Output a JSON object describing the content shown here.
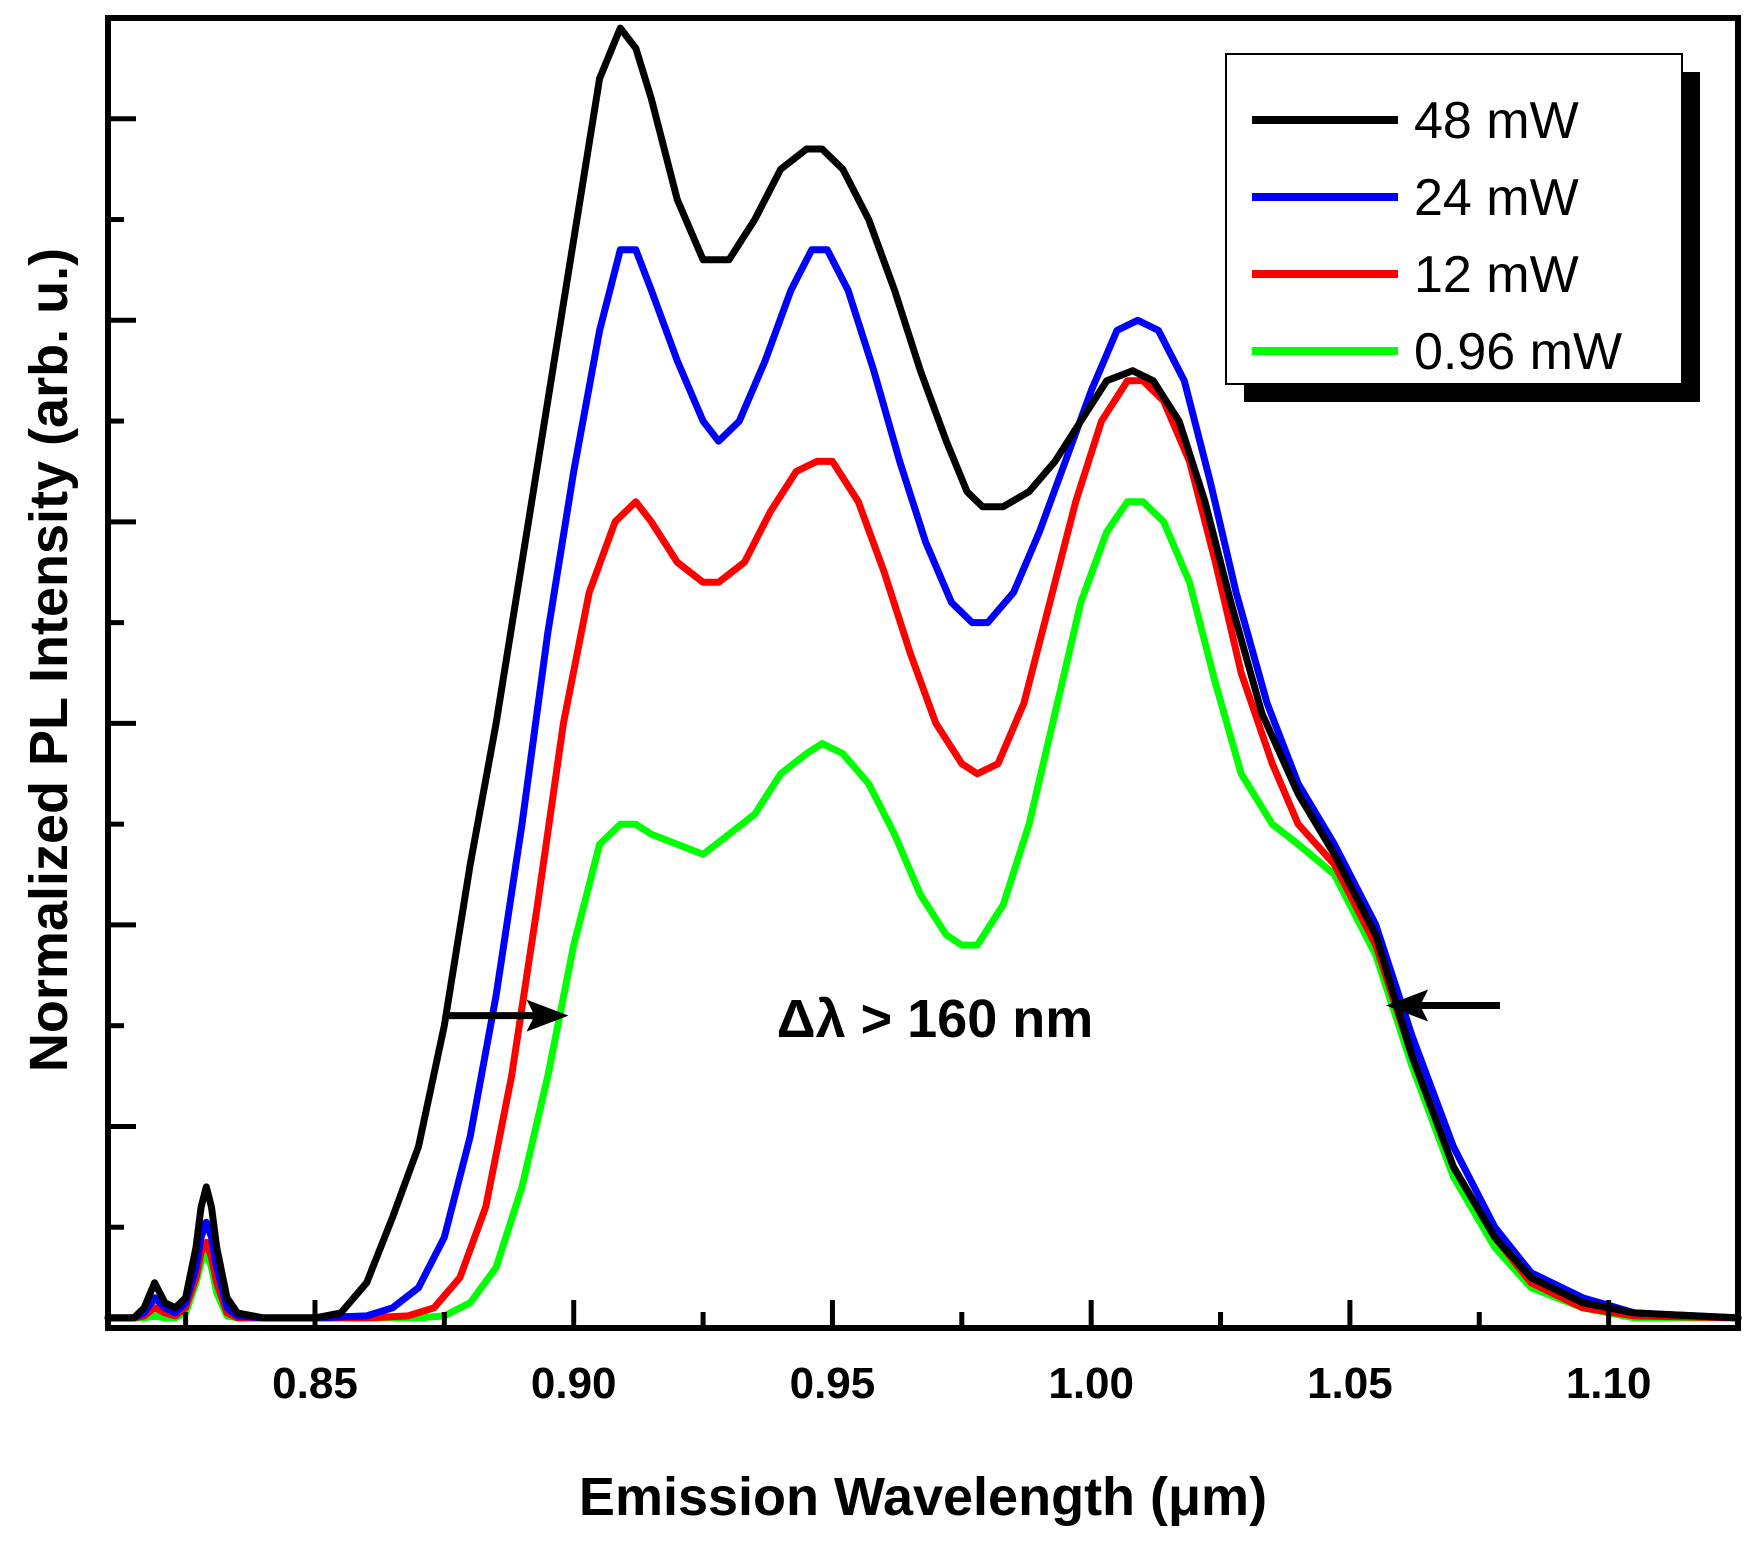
{
  "chart_data": {
    "type": "line",
    "title": "",
    "xlabel": "Emission Wavelength (μm)",
    "ylabel": "Normalized PL Intensity (arb. u.)",
    "xlim": [
      0.81,
      1.125
    ],
    "ylim": [
      0,
      1.3
    ],
    "xticks": [
      0.85,
      0.9,
      0.95,
      1.0,
      1.05,
      1.1
    ],
    "xtick_labels": [
      "0.85",
      "0.90",
      "0.95",
      "1.00",
      "1.05",
      "1.10"
    ],
    "grid": false,
    "legend_position": "top-right",
    "annotation": "Δλ > 160 nm",
    "arrows": [
      {
        "from": [
          0.875,
          0.31
        ],
        "to": [
          0.899,
          0.31
        ]
      },
      {
        "from": [
          1.079,
          0.32
        ],
        "to": [
          1.057,
          0.32
        ]
      }
    ],
    "series": [
      {
        "name": "48 mW",
        "color": "#000000",
        "points": [
          [
            0.81,
            0.01
          ],
          [
            0.815,
            0.01
          ],
          [
            0.817,
            0.02
          ],
          [
            0.819,
            0.045
          ],
          [
            0.821,
            0.025
          ],
          [
            0.823,
            0.02
          ],
          [
            0.825,
            0.03
          ],
          [
            0.827,
            0.08
          ],
          [
            0.828,
            0.12
          ],
          [
            0.829,
            0.14
          ],
          [
            0.83,
            0.12
          ],
          [
            0.831,
            0.08
          ],
          [
            0.833,
            0.03
          ],
          [
            0.835,
            0.015
          ],
          [
            0.84,
            0.01
          ],
          [
            0.85,
            0.01
          ],
          [
            0.855,
            0.015
          ],
          [
            0.86,
            0.045
          ],
          [
            0.865,
            0.11
          ],
          [
            0.87,
            0.18
          ],
          [
            0.875,
            0.3
          ],
          [
            0.88,
            0.46
          ],
          [
            0.885,
            0.6
          ],
          [
            0.89,
            0.76
          ],
          [
            0.895,
            0.92
          ],
          [
            0.9,
            1.08
          ],
          [
            0.905,
            1.24
          ],
          [
            0.909,
            1.29
          ],
          [
            0.912,
            1.27
          ],
          [
            0.915,
            1.22
          ],
          [
            0.92,
            1.12
          ],
          [
            0.925,
            1.06
          ],
          [
            0.93,
            1.06
          ],
          [
            0.935,
            1.1
          ],
          [
            0.94,
            1.15
          ],
          [
            0.945,
            1.17
          ],
          [
            0.948,
            1.17
          ],
          [
            0.952,
            1.15
          ],
          [
            0.957,
            1.1
          ],
          [
            0.962,
            1.03
          ],
          [
            0.967,
            0.95
          ],
          [
            0.972,
            0.88
          ],
          [
            0.976,
            0.83
          ],
          [
            0.979,
            0.815
          ],
          [
            0.983,
            0.815
          ],
          [
            0.988,
            0.83
          ],
          [
            0.993,
            0.86
          ],
          [
            0.998,
            0.9
          ],
          [
            1.003,
            0.94
          ],
          [
            1.008,
            0.95
          ],
          [
            1.012,
            0.94
          ],
          [
            1.017,
            0.9
          ],
          [
            1.022,
            0.82
          ],
          [
            1.027,
            0.72
          ],
          [
            1.033,
            0.61
          ],
          [
            1.04,
            0.53
          ],
          [
            1.047,
            0.47
          ],
          [
            1.055,
            0.39
          ],
          [
            1.062,
            0.27
          ],
          [
            1.07,
            0.16
          ],
          [
            1.078,
            0.09
          ],
          [
            1.085,
            0.05
          ],
          [
            1.095,
            0.025
          ],
          [
            1.105,
            0.015
          ],
          [
            1.125,
            0.01
          ]
        ]
      },
      {
        "name": "24 mW",
        "color": "#0000ff",
        "points": [
          [
            0.81,
            0.01
          ],
          [
            0.815,
            0.01
          ],
          [
            0.817,
            0.015
          ],
          [
            0.819,
            0.03
          ],
          [
            0.821,
            0.02
          ],
          [
            0.823,
            0.015
          ],
          [
            0.825,
            0.025
          ],
          [
            0.827,
            0.06
          ],
          [
            0.828,
            0.09
          ],
          [
            0.829,
            0.105
          ],
          [
            0.83,
            0.09
          ],
          [
            0.831,
            0.06
          ],
          [
            0.833,
            0.02
          ],
          [
            0.835,
            0.012
          ],
          [
            0.84,
            0.01
          ],
          [
            0.85,
            0.01
          ],
          [
            0.86,
            0.012
          ],
          [
            0.865,
            0.02
          ],
          [
            0.87,
            0.04
          ],
          [
            0.875,
            0.09
          ],
          [
            0.88,
            0.19
          ],
          [
            0.885,
            0.33
          ],
          [
            0.89,
            0.5
          ],
          [
            0.895,
            0.69
          ],
          [
            0.9,
            0.85
          ],
          [
            0.905,
            0.99
          ],
          [
            0.909,
            1.07
          ],
          [
            0.912,
            1.07
          ],
          [
            0.915,
            1.03
          ],
          [
            0.92,
            0.96
          ],
          [
            0.925,
            0.9
          ],
          [
            0.928,
            0.88
          ],
          [
            0.932,
            0.9
          ],
          [
            0.937,
            0.96
          ],
          [
            0.942,
            1.03
          ],
          [
            0.946,
            1.07
          ],
          [
            0.949,
            1.07
          ],
          [
            0.953,
            1.03
          ],
          [
            0.958,
            0.95
          ],
          [
            0.963,
            0.86
          ],
          [
            0.968,
            0.78
          ],
          [
            0.973,
            0.72
          ],
          [
            0.977,
            0.7
          ],
          [
            0.98,
            0.7
          ],
          [
            0.985,
            0.73
          ],
          [
            0.99,
            0.79
          ],
          [
            0.995,
            0.86
          ],
          [
            1.0,
            0.93
          ],
          [
            1.005,
            0.99
          ],
          [
            1.009,
            1.0
          ],
          [
            1.013,
            0.99
          ],
          [
            1.018,
            0.94
          ],
          [
            1.023,
            0.84
          ],
          [
            1.028,
            0.73
          ],
          [
            1.034,
            0.62
          ],
          [
            1.04,
            0.54
          ],
          [
            1.047,
            0.48
          ],
          [
            1.055,
            0.4
          ],
          [
            1.062,
            0.29
          ],
          [
            1.07,
            0.18
          ],
          [
            1.078,
            0.1
          ],
          [
            1.085,
            0.055
          ],
          [
            1.095,
            0.03
          ],
          [
            1.105,
            0.015
          ],
          [
            1.125,
            0.01
          ]
        ]
      },
      {
        "name": "12 mW",
        "color": "#ff0000",
        "points": [
          [
            0.81,
            0.01
          ],
          [
            0.815,
            0.01
          ],
          [
            0.817,
            0.012
          ],
          [
            0.819,
            0.02
          ],
          [
            0.821,
            0.015
          ],
          [
            0.823,
            0.012
          ],
          [
            0.825,
            0.02
          ],
          [
            0.827,
            0.05
          ],
          [
            0.828,
            0.075
          ],
          [
            0.829,
            0.085
          ],
          [
            0.83,
            0.07
          ],
          [
            0.831,
            0.045
          ],
          [
            0.833,
            0.015
          ],
          [
            0.835,
            0.01
          ],
          [
            0.84,
            0.01
          ],
          [
            0.85,
            0.01
          ],
          [
            0.86,
            0.01
          ],
          [
            0.868,
            0.012
          ],
          [
            0.873,
            0.02
          ],
          [
            0.878,
            0.05
          ],
          [
            0.883,
            0.12
          ],
          [
            0.888,
            0.25
          ],
          [
            0.893,
            0.42
          ],
          [
            0.898,
            0.6
          ],
          [
            0.903,
            0.73
          ],
          [
            0.908,
            0.8
          ],
          [
            0.912,
            0.82
          ],
          [
            0.915,
            0.8
          ],
          [
            0.92,
            0.76
          ],
          [
            0.925,
            0.74
          ],
          [
            0.928,
            0.74
          ],
          [
            0.933,
            0.76
          ],
          [
            0.938,
            0.81
          ],
          [
            0.943,
            0.85
          ],
          [
            0.947,
            0.86
          ],
          [
            0.95,
            0.86
          ],
          [
            0.955,
            0.82
          ],
          [
            0.96,
            0.75
          ],
          [
            0.965,
            0.67
          ],
          [
            0.97,
            0.6
          ],
          [
            0.975,
            0.56
          ],
          [
            0.978,
            0.55
          ],
          [
            0.982,
            0.56
          ],
          [
            0.987,
            0.62
          ],
          [
            0.992,
            0.72
          ],
          [
            0.997,
            0.82
          ],
          [
            1.002,
            0.9
          ],
          [
            1.007,
            0.94
          ],
          [
            1.01,
            0.94
          ],
          [
            1.014,
            0.92
          ],
          [
            1.019,
            0.86
          ],
          [
            1.024,
            0.76
          ],
          [
            1.029,
            0.65
          ],
          [
            1.035,
            0.56
          ],
          [
            1.04,
            0.5
          ],
          [
            1.047,
            0.46
          ],
          [
            1.055,
            0.38
          ],
          [
            1.062,
            0.27
          ],
          [
            1.07,
            0.16
          ],
          [
            1.078,
            0.09
          ],
          [
            1.085,
            0.045
          ],
          [
            1.095,
            0.02
          ],
          [
            1.105,
            0.012
          ],
          [
            1.125,
            0.01
          ]
        ]
      },
      {
        "name": "0.96 mW",
        "color": "#00ff00",
        "points": [
          [
            0.81,
            0.01
          ],
          [
            0.815,
            0.01
          ],
          [
            0.817,
            0.01
          ],
          [
            0.819,
            0.012
          ],
          [
            0.821,
            0.01
          ],
          [
            0.823,
            0.01
          ],
          [
            0.825,
            0.015
          ],
          [
            0.827,
            0.045
          ],
          [
            0.828,
            0.065
          ],
          [
            0.829,
            0.075
          ],
          [
            0.83,
            0.06
          ],
          [
            0.831,
            0.035
          ],
          [
            0.833,
            0.012
          ],
          [
            0.835,
            0.01
          ],
          [
            0.84,
            0.01
          ],
          [
            0.85,
            0.01
          ],
          [
            0.86,
            0.01
          ],
          [
            0.87,
            0.01
          ],
          [
            0.875,
            0.012
          ],
          [
            0.88,
            0.025
          ],
          [
            0.885,
            0.06
          ],
          [
            0.89,
            0.14
          ],
          [
            0.895,
            0.25
          ],
          [
            0.9,
            0.38
          ],
          [
            0.905,
            0.48
          ],
          [
            0.909,
            0.5
          ],
          [
            0.912,
            0.5
          ],
          [
            0.915,
            0.49
          ],
          [
            0.92,
            0.48
          ],
          [
            0.925,
            0.47
          ],
          [
            0.93,
            0.49
          ],
          [
            0.935,
            0.51
          ],
          [
            0.94,
            0.55
          ],
          [
            0.945,
            0.57
          ],
          [
            0.948,
            0.58
          ],
          [
            0.952,
            0.57
          ],
          [
            0.957,
            0.54
          ],
          [
            0.962,
            0.49
          ],
          [
            0.967,
            0.43
          ],
          [
            0.972,
            0.39
          ],
          [
            0.975,
            0.38
          ],
          [
            0.978,
            0.38
          ],
          [
            0.983,
            0.42
          ],
          [
            0.988,
            0.5
          ],
          [
            0.993,
            0.61
          ],
          [
            0.998,
            0.72
          ],
          [
            1.003,
            0.79
          ],
          [
            1.007,
            0.82
          ],
          [
            1.01,
            0.82
          ],
          [
            1.014,
            0.8
          ],
          [
            1.019,
            0.74
          ],
          [
            1.024,
            0.64
          ],
          [
            1.029,
            0.55
          ],
          [
            1.035,
            0.5
          ],
          [
            1.04,
            0.48
          ],
          [
            1.047,
            0.45
          ],
          [
            1.055,
            0.37
          ],
          [
            1.062,
            0.26
          ],
          [
            1.07,
            0.15
          ],
          [
            1.078,
            0.08
          ],
          [
            1.085,
            0.04
          ],
          [
            1.095,
            0.02
          ],
          [
            1.105,
            0.01
          ],
          [
            1.125,
            0.01
          ]
        ]
      }
    ]
  }
}
